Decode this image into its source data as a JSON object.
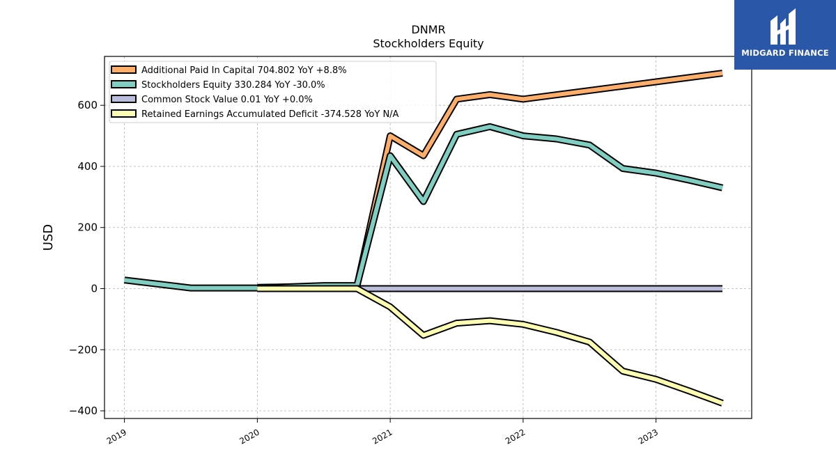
{
  "chart_data": {
    "type": "line",
    "title": "DNMR",
    "subtitle": "Stockholders  Equity",
    "xlabel": "",
    "ylabel": "USD",
    "ylim": [
      -425,
      760
    ],
    "xlim": [
      2018.85,
      2023.72
    ],
    "yticks": [
      -400,
      -200,
      0,
      200,
      400,
      600
    ],
    "ytick_labels": [
      "−400",
      "−200",
      "0",
      "200",
      "400",
      "600"
    ],
    "xticks": [
      2019,
      2020,
      2021,
      2022,
      2023
    ],
    "xtick_labels": [
      "2019",
      "2020",
      "2021",
      "2022",
      "2023"
    ],
    "grid": true,
    "legend_position": "top-left",
    "series": [
      {
        "name": "Additional Paid In Capital",
        "legend_label": "Additional Paid In Capital  704.802 YoY +8.8%",
        "color": "#fdae6b",
        "x": [
          2020.0,
          2020.75,
          2021.0,
          2021.25,
          2021.5,
          2021.75,
          2022.0,
          2023.5
        ],
        "y": [
          4,
          8,
          500,
          435,
          620,
          635,
          620,
          705
        ]
      },
      {
        "name": "Stockholders Equity",
        "legend_label": "Stockholders Equity  330.284 YoY -30.0%",
        "color": "#80cdc1",
        "x": [
          2019.0,
          2019.5,
          2019.75,
          2020.0,
          2020.5,
          2020.75,
          2021.0,
          2021.25,
          2021.5,
          2021.75,
          2022.0,
          2022.25,
          2022.5,
          2022.75,
          2023.0,
          2023.25,
          2023.5
        ],
        "y": [
          28,
          2,
          2,
          2,
          10,
          10,
          435,
          285,
          505,
          530,
          500,
          490,
          470,
          393,
          378,
          355,
          330
        ]
      },
      {
        "name": "Common Stock Value",
        "legend_label": "Common Stock Value  0.01 YoY +0.0%",
        "color": "#bcbddc",
        "x": [
          2020.0,
          2023.5
        ],
        "y": [
          0.01,
          0.01
        ]
      },
      {
        "name": "Retained Earnings Accumulated Deficit",
        "legend_label": "Retained Earnings Accumulated Deficit  -374.528 YoY N/A",
        "color": "#ffffb3",
        "x": [
          2020.0,
          2020.75,
          2021.0,
          2021.25,
          2021.5,
          2021.75,
          2022.0,
          2022.25,
          2022.5,
          2022.75,
          2023.0,
          2023.25,
          2023.5
        ],
        "y": [
          0,
          0,
          -60,
          -153,
          -113,
          -105,
          -117,
          -143,
          -175,
          -270,
          -297,
          -335,
          -375
        ]
      }
    ]
  },
  "logo": {
    "text": "MIDGARD FINANCE",
    "background": "#2b57a8"
  }
}
